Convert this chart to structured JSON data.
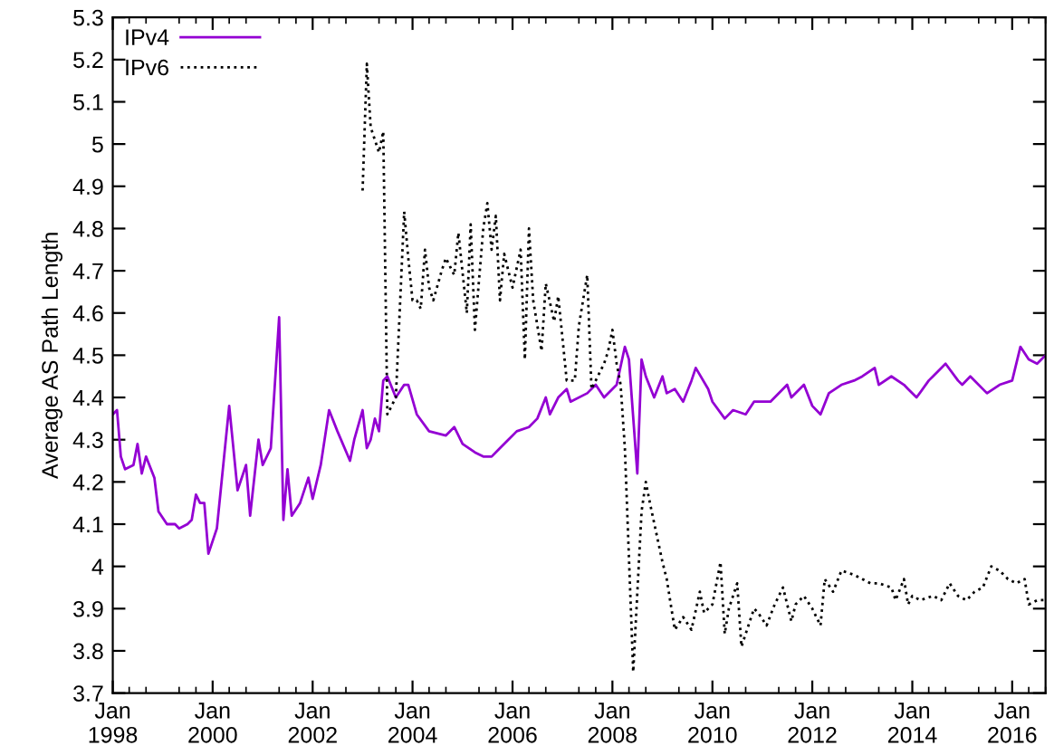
{
  "chart_data": {
    "type": "line",
    "ylabel": "Average AS Path Length",
    "legend": "top left",
    "grid": false,
    "xlim": [
      "1998-01",
      "2016-09"
    ],
    "ylim": [
      3.7,
      5.3
    ],
    "yticks": [
      3.7,
      3.8,
      3.9,
      4,
      4.1,
      4.2,
      4.3,
      4.4,
      4.5,
      4.6,
      4.7,
      4.8,
      4.9,
      5,
      5.1,
      5.2,
      5.3
    ],
    "xticks": [
      {
        "value": "1998-01",
        "label": "Jan\n1998"
      },
      {
        "value": "2000-01",
        "label": "Jan\n2000"
      },
      {
        "value": "2002-01",
        "label": "Jan\n2002"
      },
      {
        "value": "2004-01",
        "label": "Jan\n2004"
      },
      {
        "value": "2006-01",
        "label": "Jan\n2006"
      },
      {
        "value": "2008-01",
        "label": "Jan\n2008"
      },
      {
        "value": "2010-01",
        "label": "Jan\n2010"
      },
      {
        "value": "2012-01",
        "label": "Jan\n2012"
      },
      {
        "value": "2014-01",
        "label": "Jan\n2014"
      },
      {
        "value": "2016-01",
        "label": "Jan\n2016"
      }
    ],
    "series": [
      {
        "name": "IPv4",
        "color": "#9400d3",
        "line_style": "solid",
        "x": [
          "1998-01",
          "1998-02",
          "1998-03",
          "1998-04",
          "1998-06",
          "1998-07",
          "1998-08",
          "1998-09",
          "1998-11",
          "1998-12",
          "1999-02",
          "1999-04",
          "1999-05",
          "1999-07",
          "1999-08",
          "1999-09",
          "1999-10",
          "1999-11",
          "1999-12",
          "2000-02",
          "2000-05",
          "2000-07",
          "2000-09",
          "2000-10",
          "2000-12",
          "2001-01",
          "2001-03",
          "2001-05",
          "2001-06",
          "2001-07",
          "2001-08",
          "2001-10",
          "2001-12",
          "2002-01",
          "2002-03",
          "2002-05",
          "2002-07",
          "2002-10",
          "2002-11",
          "2003-01",
          "2003-02",
          "2003-03",
          "2003-04",
          "2003-05",
          "2003-06",
          "2003-07",
          "2003-09",
          "2003-11",
          "2003-12",
          "2004-02",
          "2004-05",
          "2004-09",
          "2004-11",
          "2005-01",
          "2005-04",
          "2005-06",
          "2005-08",
          "2005-10",
          "2005-12",
          "2006-02",
          "2006-05",
          "2006-07",
          "2006-09",
          "2006-10",
          "2006-12",
          "2007-02",
          "2007-03",
          "2007-07",
          "2007-09",
          "2007-11",
          "2008-02",
          "2008-04",
          "2008-05",
          "2008-07",
          "2008-08",
          "2008-09",
          "2008-11",
          "2009-01",
          "2009-02",
          "2009-04",
          "2009-06",
          "2009-08",
          "2009-09",
          "2009-12",
          "2010-01",
          "2010-04",
          "2010-06",
          "2010-09",
          "2010-11",
          "2011-03",
          "2011-07",
          "2011-08",
          "2011-11",
          "2012-01",
          "2012-03",
          "2012-05",
          "2012-08",
          "2012-11",
          "2013-01",
          "2013-04",
          "2013-05",
          "2013-08",
          "2013-11",
          "2013-12",
          "2014-02",
          "2014-05",
          "2014-06",
          "2014-09",
          "2014-12",
          "2015-01",
          "2015-03",
          "2015-07",
          "2015-10",
          "2016-01",
          "2016-03",
          "2016-05",
          "2016-07",
          "2016-09"
        ],
        "values": [
          4.36,
          4.37,
          4.26,
          4.23,
          4.24,
          4.29,
          4.22,
          4.26,
          4.21,
          4.13,
          4.1,
          4.1,
          4.09,
          4.1,
          4.11,
          4.17,
          4.15,
          4.15,
          4.03,
          4.09,
          4.38,
          4.18,
          4.24,
          4.12,
          4.3,
          4.24,
          4.28,
          4.59,
          4.11,
          4.23,
          4.12,
          4.15,
          4.21,
          4.16,
          4.24,
          4.37,
          4.32,
          4.25,
          4.3,
          4.37,
          4.28,
          4.3,
          4.35,
          4.32,
          4.44,
          4.45,
          4.4,
          4.43,
          4.43,
          4.36,
          4.32,
          4.31,
          4.33,
          4.29,
          4.27,
          4.26,
          4.26,
          4.28,
          4.3,
          4.32,
          4.33,
          4.35,
          4.4,
          4.36,
          4.4,
          4.42,
          4.39,
          4.41,
          4.43,
          4.4,
          4.43,
          4.52,
          4.49,
          4.22,
          4.49,
          4.45,
          4.4,
          4.45,
          4.41,
          4.42,
          4.39,
          4.44,
          4.47,
          4.42,
          4.39,
          4.35,
          4.37,
          4.36,
          4.39,
          4.39,
          4.43,
          4.4,
          4.43,
          4.38,
          4.36,
          4.41,
          4.43,
          4.44,
          4.45,
          4.47,
          4.43,
          4.45,
          4.43,
          4.42,
          4.4,
          4.44,
          4.45,
          4.48,
          4.44,
          4.43,
          4.45,
          4.41,
          4.43,
          4.44,
          4.52,
          4.49,
          4.48,
          4.5
        ]
      },
      {
        "name": "IPv6",
        "color": "#000000",
        "line_style": "dotted",
        "x": [
          "2003-01",
          "2003-02",
          "2003-03",
          "2003-05",
          "2003-06",
          "2003-07",
          "2003-09",
          "2003-11",
          "2003-12",
          "2004-01",
          "2004-02",
          "2004-03",
          "2004-04",
          "2004-05",
          "2004-06",
          "2004-08",
          "2004-09",
          "2004-10",
          "2004-11",
          "2004-12",
          "2005-02",
          "2005-03",
          "2005-04",
          "2005-06",
          "2005-07",
          "2005-08",
          "2005-09",
          "2005-10",
          "2005-11",
          "2006-01",
          "2006-03",
          "2006-04",
          "2006-05",
          "2006-06",
          "2006-08",
          "2006-09",
          "2006-11",
          "2006-12",
          "2007-02",
          "2007-04",
          "2007-05",
          "2007-07",
          "2007-08",
          "2007-11",
          "2007-12",
          "2008-01",
          "2008-02",
          "2008-03",
          "2008-04",
          "2008-06",
          "2008-08",
          "2008-09",
          "2008-10",
          "2009-01",
          "2009-02",
          "2009-04",
          "2009-06",
          "2009-08",
          "2009-10",
          "2009-11",
          "2010-01",
          "2010-03",
          "2010-04",
          "2010-05",
          "2010-07",
          "2010-08",
          "2010-11",
          "2010-12",
          "2011-02",
          "2011-04",
          "2011-06",
          "2011-08",
          "2011-09",
          "2011-11",
          "2012-01",
          "2012-03",
          "2012-04",
          "2012-06",
          "2012-08",
          "2012-11",
          "2013-01",
          "2013-03",
          "2013-05",
          "2013-08",
          "2013-09",
          "2013-11",
          "2013-12",
          "2014-01",
          "2014-03",
          "2014-06",
          "2014-08",
          "2014-10",
          "2014-12",
          "2015-02",
          "2015-04",
          "2015-06",
          "2015-08",
          "2015-10",
          "2015-12",
          "2016-02",
          "2016-04",
          "2016-05",
          "2016-07",
          "2016-09"
        ],
        "values": [
          4.89,
          5.19,
          5.04,
          4.98,
          5.03,
          4.36,
          4.4,
          4.84,
          4.73,
          4.63,
          4.63,
          4.61,
          4.75,
          4.66,
          4.63,
          4.7,
          4.73,
          4.71,
          4.69,
          4.79,
          4.6,
          4.81,
          4.56,
          4.8,
          4.86,
          4.75,
          4.83,
          4.63,
          4.74,
          4.66,
          4.75,
          4.49,
          4.8,
          4.63,
          4.51,
          4.67,
          4.58,
          4.64,
          4.44,
          4.44,
          4.57,
          4.69,
          4.42,
          4.48,
          4.51,
          4.56,
          4.48,
          4.43,
          4.28,
          3.75,
          4.13,
          4.2,
          4.15,
          4.01,
          3.97,
          3.85,
          3.88,
          3.85,
          3.94,
          3.89,
          3.91,
          4.01,
          3.84,
          3.9,
          3.96,
          3.81,
          3.9,
          3.89,
          3.86,
          3.91,
          3.95,
          3.87,
          3.91,
          3.93,
          3.9,
          3.86,
          3.97,
          3.94,
          3.99,
          3.98,
          3.97,
          3.96,
          3.96,
          3.95,
          3.92,
          3.97,
          3.91,
          3.93,
          3.92,
          3.93,
          3.92,
          3.96,
          3.93,
          3.92,
          3.94,
          3.95,
          4.0,
          3.99,
          3.97,
          3.96,
          3.97,
          3.91,
          3.92,
          3.92
        ]
      }
    ]
  }
}
